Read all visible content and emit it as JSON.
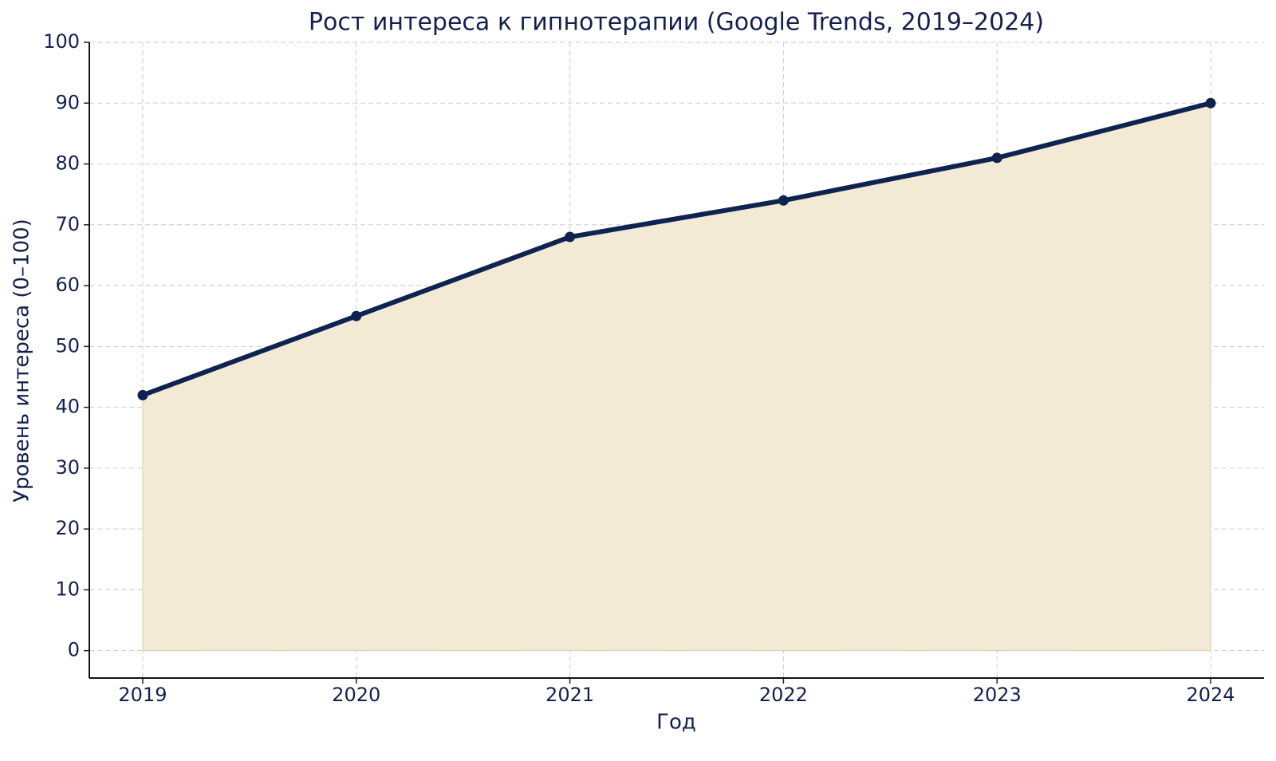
{
  "chart_data": {
    "type": "area-line",
    "title": "Рост интереса к гипнотерапии (Google Trends, 2019–2024)",
    "x_label": "Год",
    "y_label": "Уровень интереса (0–100)",
    "x": [
      2019,
      2020,
      2021,
      2022,
      2023,
      2024
    ],
    "series": [
      {
        "values": [
          42,
          55,
          68,
          74,
          81,
          90
        ],
        "color": "#0e2350",
        "fill": "#f2ead5"
      }
    ],
    "xlim": [
      2018.75,
      2024.25
    ],
    "xticks": [
      2019,
      2020,
      2021,
      2022,
      2023,
      2024
    ],
    "ylim": [
      -4.5,
      100
    ],
    "yticks": [
      0,
      10,
      20,
      30,
      40,
      50,
      60,
      70,
      80,
      90,
      100
    ],
    "grid": true
  }
}
